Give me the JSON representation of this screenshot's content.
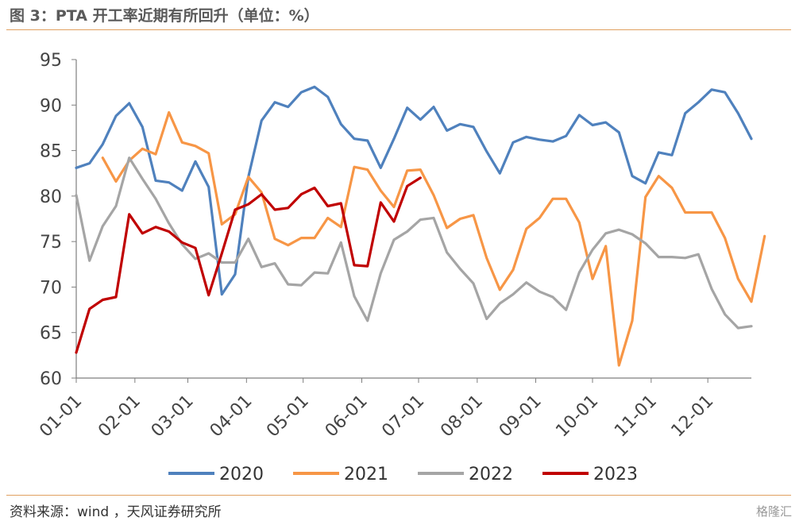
{
  "title": "图 3：PTA 开工率近期有所回升（单位：%）",
  "source": "资料来源：wind ，天风证券研究所",
  "watermark": "格隆汇",
  "chart_data": {
    "type": "line",
    "title": "PTA 开工率近期有所回升（单位：%）",
    "ylim": [
      60,
      95
    ],
    "yticks": [
      60,
      65,
      70,
      75,
      80,
      85,
      90,
      95
    ],
    "xlim": [
      0,
      51
    ],
    "xticks": [
      {
        "label": "01-01",
        "pos": 0
      },
      {
        "label": "02-01",
        "pos": 4.43
      },
      {
        "label": "03-01",
        "pos": 8.43
      },
      {
        "label": "04-01",
        "pos": 12.86
      },
      {
        "label": "05-01",
        "pos": 17.14
      },
      {
        "label": "06-01",
        "pos": 21.57
      },
      {
        "label": "07-01",
        "pos": 25.86
      },
      {
        "label": "08-01",
        "pos": 30.29
      },
      {
        "label": "09-01",
        "pos": 34.71
      },
      {
        "label": "10-01",
        "pos": 39
      },
      {
        "label": "11-01",
        "pos": 43.43
      },
      {
        "label": "12-01",
        "pos": 47.71
      }
    ],
    "legend_position": "bottom",
    "grid": false,
    "series": [
      {
        "name": "2020",
        "color": "#4f81bd",
        "values": [
          83.1,
          83.6,
          85.7,
          88.8,
          90.2,
          87.6,
          81.7,
          81.5,
          80.6,
          83.8,
          81,
          69.2,
          71.4,
          82.1,
          88.3,
          90.3,
          89.8,
          91.4,
          92,
          90.9,
          87.9,
          86.3,
          86.1,
          83.1,
          86.3,
          89.7,
          88.4,
          89.8,
          87.2,
          87.9,
          87.6,
          84.9,
          82.5,
          85.9,
          86.5,
          86.2,
          86,
          86.6,
          88.9,
          87.8,
          88.1,
          87,
          82.2,
          81.4,
          84.8,
          84.5,
          89.1,
          90.3,
          91.7,
          91.4,
          89.1,
          86.3
        ]
      },
      {
        "name": "2021",
        "color": "#f79646",
        "values": [
          null,
          null,
          84.2,
          81.6,
          83.9,
          85.2,
          84.6,
          89.2,
          85.9,
          85.5,
          84.7,
          76.9,
          78,
          82.1,
          80.4,
          75.3,
          74.6,
          75.4,
          75.4,
          77.6,
          76.6,
          83.2,
          82.9,
          80.6,
          78.8,
          82.8,
          82.9,
          80.1,
          76.5,
          77.5,
          77.9,
          73.2,
          69.7,
          71.9,
          76.4,
          77.6,
          79.7,
          79.7,
          77.1,
          70.9,
          74.5,
          61.4,
          66.3,
          79.9,
          82.2,
          80.9,
          78.2,
          78.2,
          78.2,
          75.4,
          70.9,
          68.4,
          75.6
        ]
      },
      {
        "name": "2022",
        "color": "#a5a5a5",
        "values": [
          80.1,
          72.9,
          76.7,
          78.9,
          84.2,
          81.9,
          79.7,
          77,
          74.7,
          73.1,
          73.7,
          72.7,
          72.7,
          75.3,
          72.2,
          72.6,
          70.3,
          70.2,
          71.6,
          71.5,
          74.9,
          69,
          66.3,
          71.5,
          75.2,
          76.1,
          77.4,
          77.6,
          73.8,
          72,
          70.4,
          66.5,
          68.2,
          69.2,
          70.5,
          69.5,
          68.9,
          67.5,
          71.6,
          74.1,
          75.9,
          76.3,
          75.8,
          74.8,
          73.3,
          73.3,
          73.2,
          73.6,
          69.8,
          67,
          65.5,
          65.7
        ]
      },
      {
        "name": "2023",
        "color": "#c00000",
        "values": [
          62.8,
          67.6,
          68.6,
          68.9,
          78,
          75.9,
          76.6,
          76.1,
          74.9,
          74.3,
          69.1,
          73.7,
          78.5,
          79.1,
          80.2,
          78.5,
          78.7,
          80.2,
          80.9,
          78.9,
          79.2,
          72.4,
          72.3,
          79.3,
          77.2,
          81.1,
          82
        ]
      }
    ]
  }
}
